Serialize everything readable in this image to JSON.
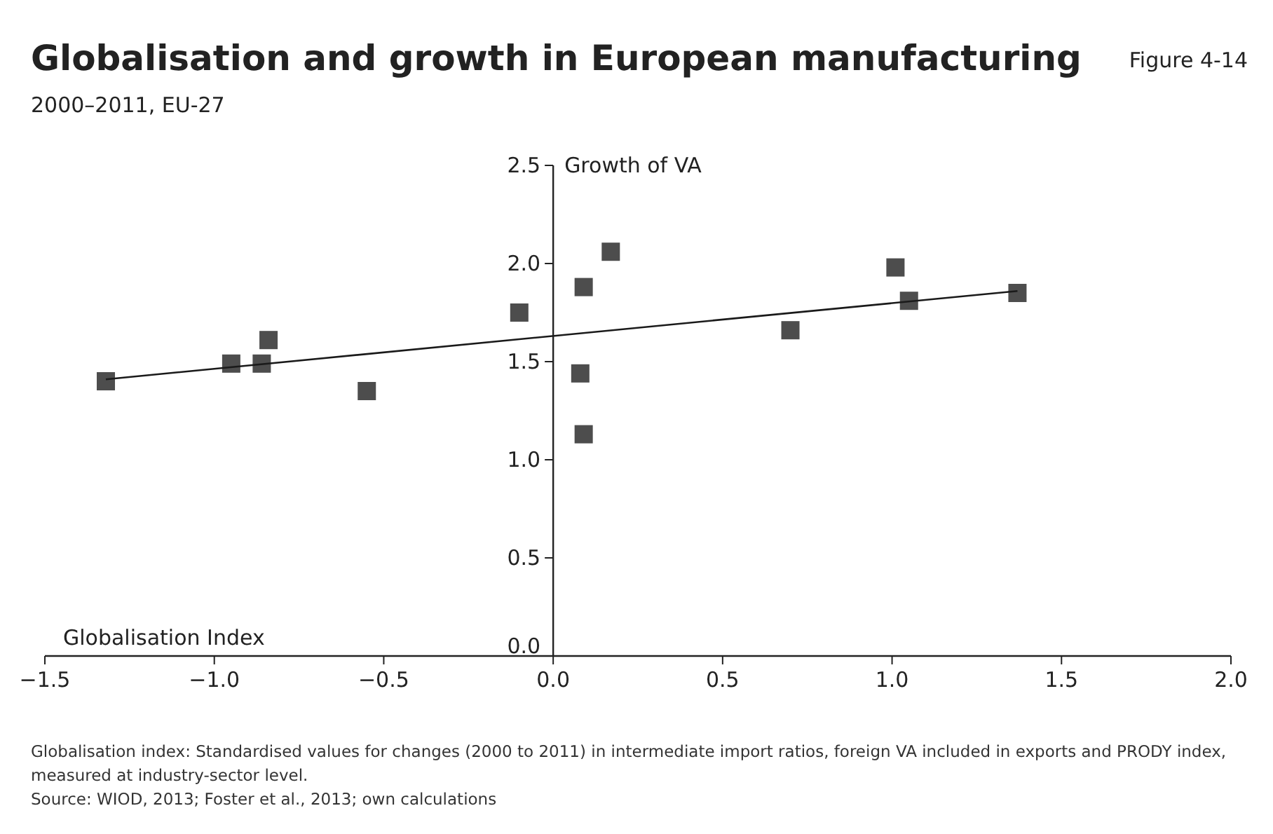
{
  "chart_data": {
    "type": "scatter",
    "title": "Globalisation and growth in European manufacturing",
    "subtitle": "2000–2011, EU-27",
    "xlabel": "Globalisation Index",
    "ylabel": "Growth of VA",
    "annotations": [
      "Figure 4-14",
      "Globalisation index: Standardised values for changes (2000 to 2011) in intermediate import ratios, foreign VA included in exports and PRODY index, measured at industry-sector level.",
      "Source: WIOD, 2013; Foster et al., 2013; own calculations"
    ],
    "xlim": [
      -1.5,
      2.0
    ],
    "ylim": [
      0,
      2.5
    ],
    "xticks": [
      {
        "value": -1.5,
        "label": "−1.5"
      },
      {
        "value": -1,
        "label": "−1.0"
      },
      {
        "value": -0.5,
        "label": "−0.5"
      },
      {
        "value": 0,
        "label": "0.0"
      },
      {
        "value": 0.5,
        "label": "0.5"
      },
      {
        "value": 1,
        "label": "1.0"
      },
      {
        "value": 1.5,
        "label": "1.5"
      },
      {
        "value": 2,
        "label": "2.0"
      }
    ],
    "yticks": [
      {
        "value": 0,
        "label": "0.0"
      },
      {
        "value": 0.5,
        "label": "0.5"
      },
      {
        "value": 1,
        "label": "1.0"
      },
      {
        "value": 1.5,
        "label": "1.5"
      },
      {
        "value": 2,
        "label": "2.0"
      },
      {
        "value": 2.5,
        "label": "2.5"
      }
    ],
    "grid": false,
    "marker": "square",
    "series": [
      {
        "color": "#4d4d4d",
        "x": [
          -1.32,
          -0.95,
          -0.86,
          -0.84,
          -0.55,
          -0.1,
          0.08,
          0.09,
          0.09,
          0.17,
          0.7,
          1.01,
          1.05,
          1.37
        ],
        "values": [
          1.4,
          1.49,
          1.49,
          1.61,
          1.35,
          1.75,
          1.44,
          1.88,
          1.13,
          2.06,
          1.66,
          1.98,
          1.81,
          1.85
        ]
      },
      {
        "type": "line",
        "color": "#1a1a1a",
        "line_style": "solid",
        "marker": "none",
        "x": [
          -1.32,
          1.37
        ],
        "values": [
          1.41,
          1.86
        ]
      }
    ]
  }
}
